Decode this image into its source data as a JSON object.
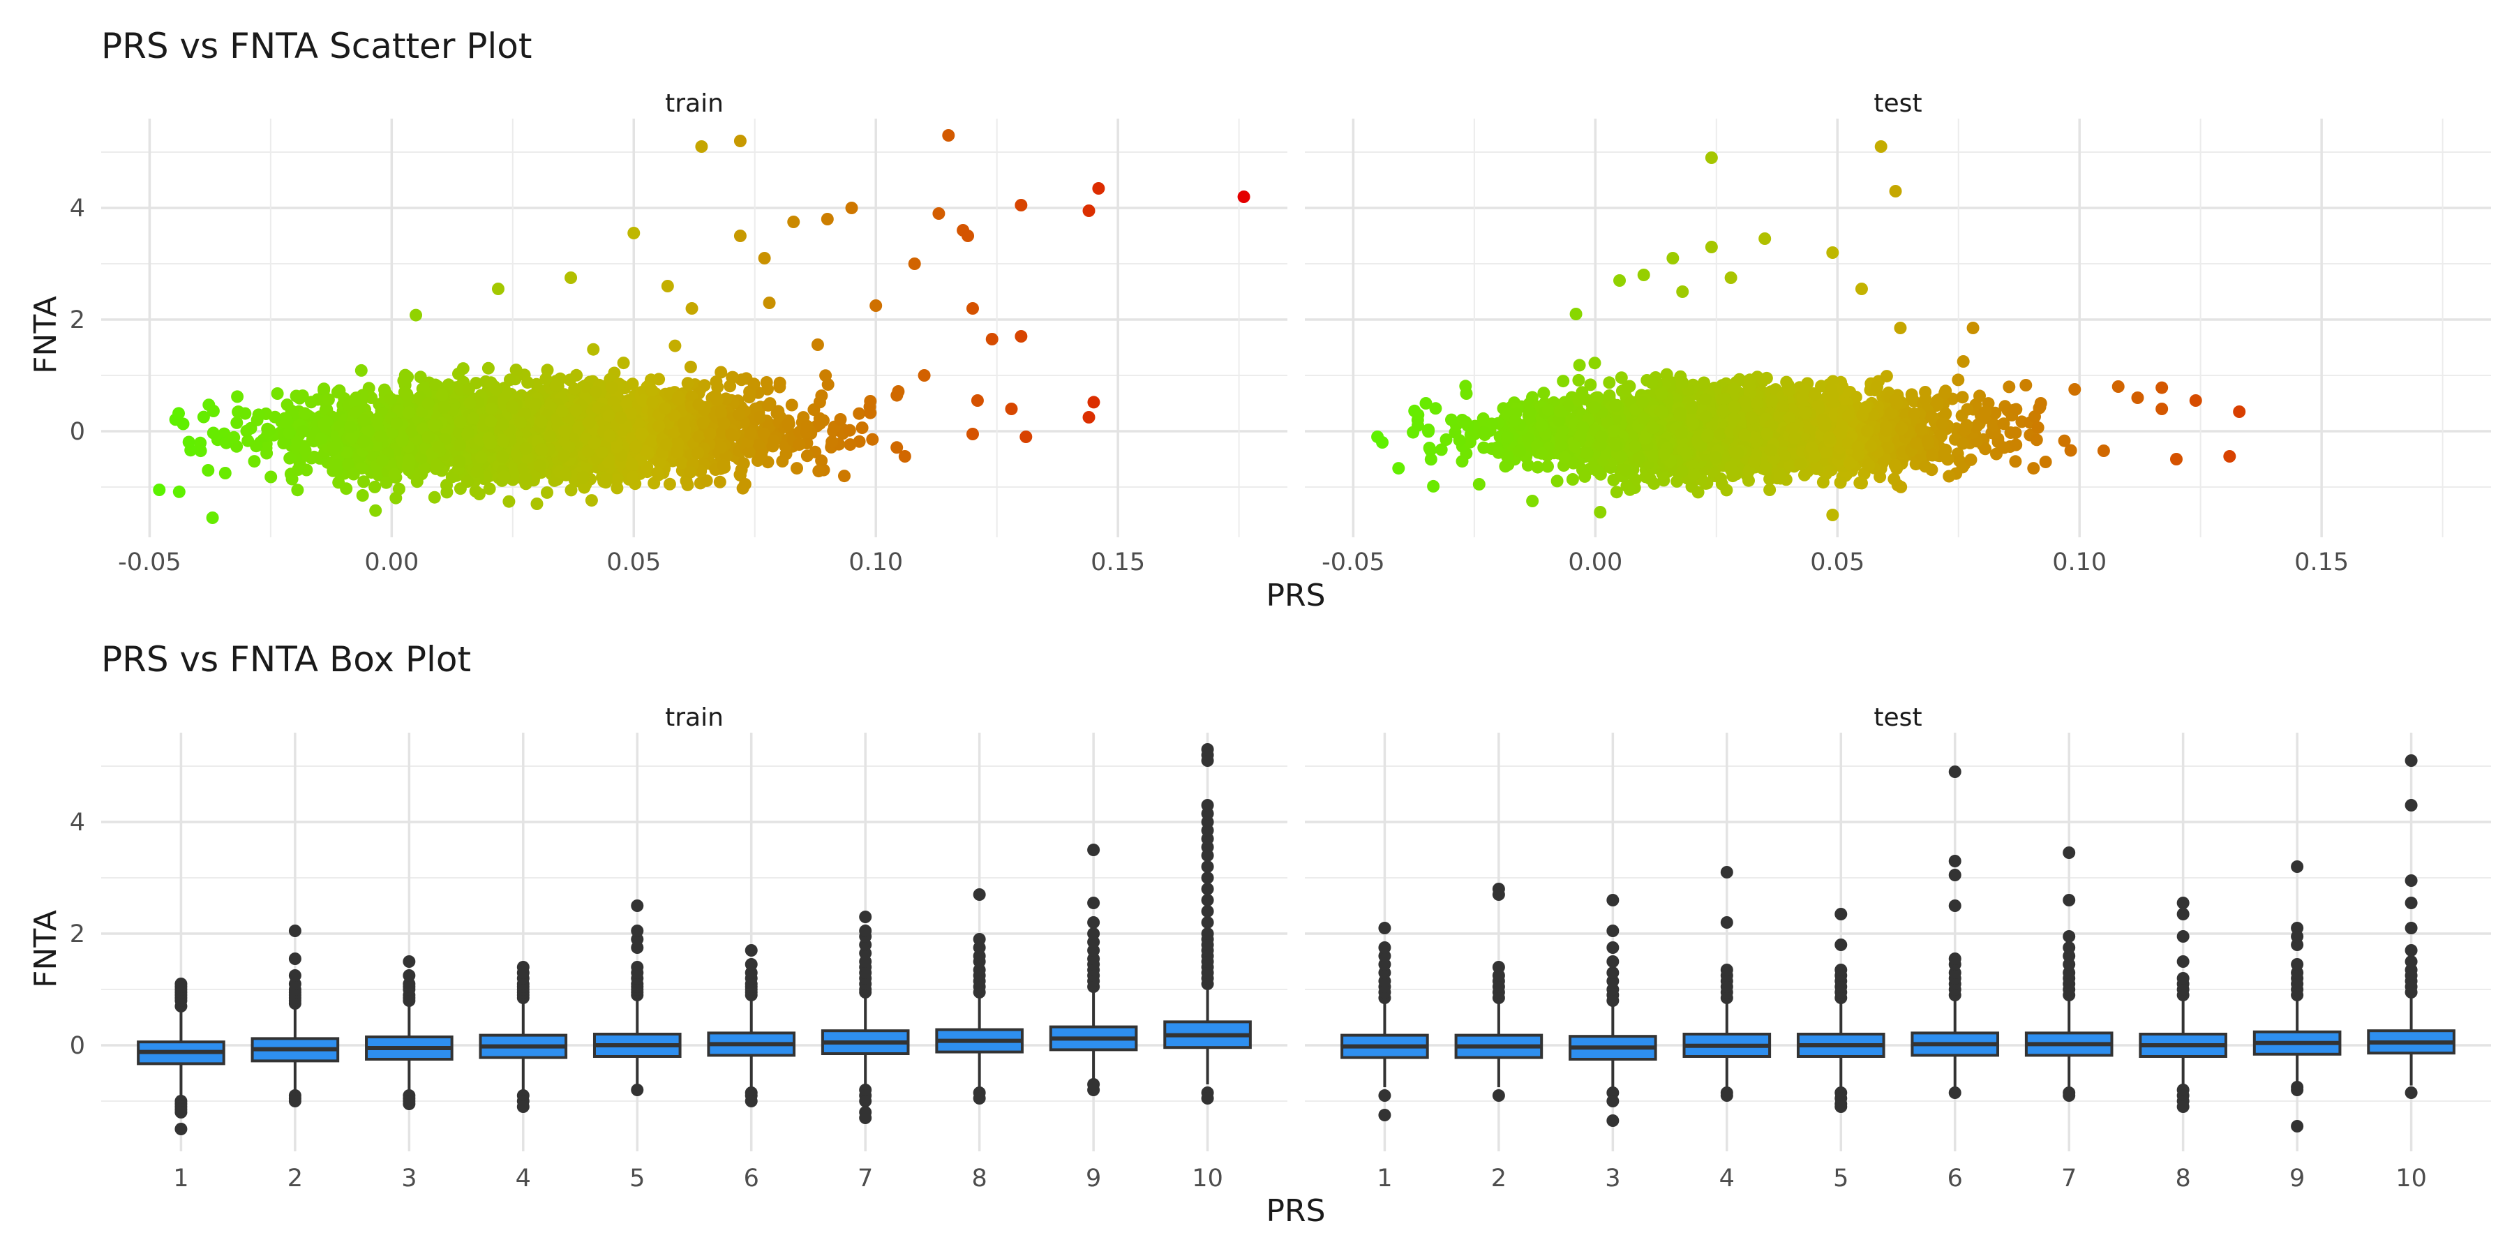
{
  "figure": {
    "top_title": "PRS vs FNTA Scatter Plot",
    "bottom_title": "PRS vs FNTA Box Plot"
  },
  "chart_data": [
    {
      "type": "scatter",
      "title": "PRS vs FNTA Scatter Plot",
      "xlabel": "PRS",
      "ylabel": "FNTA",
      "xlim": [
        -0.06,
        0.185
      ],
      "ylim": [
        -1.9,
        5.6
      ],
      "x_ticks": [
        -0.05,
        0.0,
        0.05,
        0.1,
        0.15
      ],
      "x_tick_labels": [
        "-0.05",
        "0.00",
        "0.05",
        "0.10",
        "0.15"
      ],
      "y_ticks": [
        0,
        2,
        4
      ],
      "y_tick_labels": [
        "0",
        "2",
        "4"
      ],
      "grid": true,
      "legend": "none",
      "color_mapping": "points colored by PRS on a green-to-red gradient",
      "colors": {
        "low": "#5bf200",
        "mid": "#c2b500",
        "high": "#e40000"
      },
      "facets": [
        {
          "name": "train",
          "cloud": {
            "x_center": 0.03,
            "x_sd": 0.024,
            "x_range": [
              -0.045,
              0.11
            ],
            "y_sd": 0.38,
            "slope": 4.0
          },
          "points": [
            {
              "x": -0.048,
              "y": -1.05
            },
            {
              "x": -0.037,
              "y": -1.55
            },
            {
              "x": -0.044,
              "y": 0.32
            },
            {
              "x": 0.005,
              "y": 2.08
            },
            {
              "x": 0.022,
              "y": 2.55
            },
            {
              "x": 0.037,
              "y": 2.75
            },
            {
              "x": 0.05,
              "y": 3.55
            },
            {
              "x": 0.057,
              "y": 2.6
            },
            {
              "x": 0.064,
              "y": 5.1
            },
            {
              "x": 0.072,
              "y": 5.2
            },
            {
              "x": 0.072,
              "y": 3.5
            },
            {
              "x": 0.077,
              "y": 3.1
            },
            {
              "x": 0.083,
              "y": 3.75
            },
            {
              "x": 0.09,
              "y": 3.8
            },
            {
              "x": 0.095,
              "y": 4.0
            },
            {
              "x": 0.108,
              "y": 3.0
            },
            {
              "x": 0.1,
              "y": 2.25
            },
            {
              "x": 0.115,
              "y": 5.3
            },
            {
              "x": 0.11,
              "y": 1.0
            },
            {
              "x": 0.113,
              "y": 3.9
            },
            {
              "x": 0.118,
              "y": 3.6
            },
            {
              "x": 0.119,
              "y": 3.5
            },
            {
              "x": 0.12,
              "y": 2.2
            },
            {
              "x": 0.121,
              "y": 0.55
            },
            {
              "x": 0.12,
              "y": -0.05
            },
            {
              "x": 0.124,
              "y": 1.65
            },
            {
              "x": 0.128,
              "y": 0.4
            },
            {
              "x": 0.13,
              "y": 4.05
            },
            {
              "x": 0.13,
              "y": 1.7
            },
            {
              "x": 0.131,
              "y": -0.1
            },
            {
              "x": 0.144,
              "y": 3.95
            },
            {
              "x": 0.146,
              "y": 4.35
            },
            {
              "x": 0.145,
              "y": 0.52
            },
            {
              "x": 0.144,
              "y": 0.25
            },
            {
              "x": 0.176,
              "y": 4.2
            },
            {
              "x": 0.073,
              "y": -0.95
            },
            {
              "x": -0.006,
              "y": -1.15
            },
            {
              "x": 0.03,
              "y": -1.3
            },
            {
              "x": 0.106,
              "y": -0.45
            },
            {
              "x": 0.088,
              "y": 1.55
            },
            {
              "x": 0.078,
              "y": 2.3
            },
            {
              "x": 0.062,
              "y": 2.2
            }
          ]
        },
        {
          "name": "test",
          "cloud": {
            "x_center": 0.03,
            "x_sd": 0.022,
            "x_range": [
              -0.045,
              0.1
            ],
            "y_sd": 0.35,
            "slope": 0.5
          },
          "points": [
            {
              "x": -0.045,
              "y": -0.1
            },
            {
              "x": -0.044,
              "y": -0.2
            },
            {
              "x": -0.035,
              "y": 0.5
            },
            {
              "x": -0.024,
              "y": -0.95
            },
            {
              "x": -0.013,
              "y": -1.25
            },
            {
              "x": 0.001,
              "y": -1.45
            },
            {
              "x": 0.024,
              "y": 4.9
            },
            {
              "x": 0.059,
              "y": 5.1
            },
            {
              "x": 0.062,
              "y": 4.3
            },
            {
              "x": 0.024,
              "y": 3.3
            },
            {
              "x": 0.016,
              "y": 3.1
            },
            {
              "x": 0.035,
              "y": 3.45
            },
            {
              "x": 0.049,
              "y": 3.2
            },
            {
              "x": 0.055,
              "y": 2.55
            },
            {
              "x": 0.01,
              "y": 2.8
            },
            {
              "x": 0.018,
              "y": 2.5
            },
            {
              "x": 0.028,
              "y": 2.75
            },
            {
              "x": 0.063,
              "y": 1.85
            },
            {
              "x": 0.078,
              "y": 1.85
            },
            {
              "x": 0.099,
              "y": 0.75
            },
            {
              "x": 0.108,
              "y": 0.8
            },
            {
              "x": 0.117,
              "y": 0.78
            },
            {
              "x": 0.112,
              "y": 0.6
            },
            {
              "x": 0.117,
              "y": 0.4
            },
            {
              "x": 0.124,
              "y": 0.55
            },
            {
              "x": 0.133,
              "y": 0.35
            },
            {
              "x": 0.131,
              "y": -0.45
            },
            {
              "x": 0.12,
              "y": -0.5
            },
            {
              "x": 0.105,
              "y": -0.35
            },
            {
              "x": 0.093,
              "y": -0.55
            },
            {
              "x": 0.049,
              "y": -1.5
            },
            {
              "x": 0.036,
              "y": -1.05
            },
            {
              "x": -0.004,
              "y": 2.1
            },
            {
              "x": 0.005,
              "y": 2.7
            },
            {
              "x": 0.076,
              "y": 1.25
            },
            {
              "x": 0.092,
              "y": 0.5
            }
          ]
        }
      ]
    },
    {
      "type": "box",
      "title": "PRS vs FNTA Box Plot",
      "xlabel": "PRS",
      "ylabel": "FNTA",
      "categories": [
        "1",
        "2",
        "3",
        "4",
        "5",
        "6",
        "7",
        "8",
        "9",
        "10"
      ],
      "ylim": [
        -1.9,
        5.6
      ],
      "y_ticks": [
        0,
        2,
        4
      ],
      "y_tick_labels": [
        "0",
        "2",
        "4"
      ],
      "grid": true,
      "box_fill": "#2e8ff0",
      "box_outline": "#333333",
      "facets": [
        {
          "name": "train",
          "boxes": [
            {
              "q1": -0.33,
              "median": -0.12,
              "q3": 0.06,
              "whisker_low": -0.92,
              "whisker_high": 0.62,
              "outliers": [
                0.7,
                0.8,
                0.85,
                0.9,
                0.95,
                1.0,
                1.05,
                1.1,
                -1.0,
                -1.05,
                -1.1,
                -1.15,
                -1.2,
                -1.5
              ]
            },
            {
              "q1": -0.28,
              "median": -0.07,
              "q3": 0.12,
              "whisker_low": -0.85,
              "whisker_high": 0.7,
              "outliers": [
                0.75,
                0.8,
                0.85,
                0.9,
                0.95,
                1.0,
                1.1,
                1.25,
                1.55,
                2.05,
                -0.9,
                -0.95,
                -1.0
              ]
            },
            {
              "q1": -0.25,
              "median": -0.05,
              "q3": 0.15,
              "whisker_low": -0.85,
              "whisker_high": 0.75,
              "outliers": [
                0.8,
                0.85,
                0.9,
                1.0,
                1.05,
                1.1,
                1.25,
                1.5,
                -0.9,
                -0.95,
                -1.0,
                -1.05
              ]
            },
            {
              "q1": -0.22,
              "median": -0.02,
              "q3": 0.18,
              "whisker_low": -0.85,
              "whisker_high": 0.8,
              "outliers": [
                0.85,
                0.9,
                0.95,
                1.0,
                1.05,
                1.1,
                1.2,
                1.3,
                1.4,
                -0.9,
                -1.0,
                -1.1
              ]
            },
            {
              "q1": -0.2,
              "median": 0.0,
              "q3": 0.2,
              "whisker_low": -0.75,
              "whisker_high": 0.82,
              "outliers": [
                0.9,
                0.95,
                1.0,
                1.05,
                1.1,
                1.2,
                1.3,
                1.4,
                1.75,
                1.9,
                2.05,
                2.5,
                -0.8
              ]
            },
            {
              "q1": -0.18,
              "median": 0.02,
              "q3": 0.22,
              "whisker_low": -0.8,
              "whisker_high": 0.85,
              "outliers": [
                0.9,
                0.95,
                1.0,
                1.05,
                1.1,
                1.2,
                1.3,
                1.45,
                1.7,
                -0.85,
                -0.9,
                -1.0
              ]
            },
            {
              "q1": -0.15,
              "median": 0.05,
              "q3": 0.26,
              "whisker_low": -0.75,
              "whisker_high": 0.9,
              "outliers": [
                0.95,
                1.0,
                1.1,
                1.2,
                1.3,
                1.4,
                1.5,
                1.65,
                1.8,
                1.95,
                2.05,
                2.3,
                -0.8,
                -0.9,
                -1.0,
                -1.2,
                -1.3
              ]
            },
            {
              "q1": -0.12,
              "median": 0.08,
              "q3": 0.28,
              "whisker_low": -0.75,
              "whisker_high": 0.9,
              "outliers": [
                0.95,
                1.05,
                1.15,
                1.25,
                1.35,
                1.5,
                1.6,
                1.75,
                1.9,
                2.7,
                -0.85,
                -0.95
              ]
            },
            {
              "q1": -0.08,
              "median": 0.12,
              "q3": 0.33,
              "whisker_low": -0.65,
              "whisker_high": 1.0,
              "outliers": [
                1.05,
                1.15,
                1.25,
                1.35,
                1.45,
                1.55,
                1.7,
                1.85,
                2.0,
                2.2,
                2.55,
                3.5,
                -0.7,
                -0.8
              ]
            },
            {
              "q1": -0.04,
              "median": 0.18,
              "q3": 0.42,
              "whisker_low": -0.7,
              "whisker_high": 1.05,
              "outliers": [
                1.1,
                1.2,
                1.3,
                1.4,
                1.5,
                1.6,
                1.7,
                1.8,
                1.9,
                2.0,
                2.2,
                2.4,
                2.6,
                2.8,
                3.0,
                3.2,
                3.4,
                3.55,
                3.7,
                3.85,
                4.0,
                4.15,
                4.3,
                5.1,
                5.2,
                5.3,
                -0.85,
                -0.95
              ]
            }
          ]
        },
        {
          "name": "test",
          "boxes": [
            {
              "q1": -0.22,
              "median": -0.02,
              "q3": 0.18,
              "whisker_low": -0.75,
              "whisker_high": 0.75,
              "outliers": [
                0.85,
                0.95,
                1.05,
                1.15,
                1.3,
                1.45,
                1.6,
                1.75,
                2.1,
                -0.9,
                -1.25
              ]
            },
            {
              "q1": -0.22,
              "median": -0.02,
              "q3": 0.18,
              "whisker_low": -0.75,
              "whisker_high": 0.78,
              "outliers": [
                0.85,
                0.95,
                1.05,
                1.15,
                1.25,
                1.4,
                2.7,
                2.8,
                -0.9
              ]
            },
            {
              "q1": -0.25,
              "median": -0.04,
              "q3": 0.16,
              "whisker_low": -0.8,
              "whisker_high": 0.76,
              "outliers": [
                0.8,
                0.9,
                1.0,
                1.15,
                1.3,
                1.5,
                1.75,
                2.05,
                2.6,
                -0.85,
                -1.0,
                -1.35
              ]
            },
            {
              "q1": -0.2,
              "median": -0.01,
              "q3": 0.2,
              "whisker_low": -0.78,
              "whisker_high": 0.8,
              "outliers": [
                0.85,
                0.95,
                1.05,
                1.15,
                1.25,
                1.35,
                2.2,
                3.1,
                -0.85,
                -0.9
              ]
            },
            {
              "q1": -0.2,
              "median": 0.0,
              "q3": 0.2,
              "whisker_low": -0.78,
              "whisker_high": 0.82,
              "outliers": [
                0.85,
                0.95,
                1.05,
                1.15,
                1.25,
                1.35,
                1.8,
                2.35,
                -0.85,
                -0.95,
                -1.05,
                -1.1
              ]
            },
            {
              "q1": -0.18,
              "median": 0.02,
              "q3": 0.22,
              "whisker_low": -0.75,
              "whisker_high": 0.85,
              "outliers": [
                0.9,
                1.0,
                1.1,
                1.2,
                1.3,
                1.45,
                1.55,
                2.5,
                3.05,
                3.3,
                4.9,
                -0.85
              ]
            },
            {
              "q1": -0.18,
              "median": 0.02,
              "q3": 0.22,
              "whisker_low": -0.75,
              "whisker_high": 0.82,
              "outliers": [
                0.9,
                1.0,
                1.1,
                1.2,
                1.3,
                1.45,
                1.6,
                1.75,
                1.95,
                2.6,
                3.45,
                -0.85,
                -0.9
              ]
            },
            {
              "q1": -0.2,
              "median": 0.0,
              "q3": 0.2,
              "whisker_low": -0.75,
              "whisker_high": 0.8,
              "outliers": [
                0.9,
                1.0,
                1.1,
                1.2,
                1.5,
                1.95,
                2.35,
                2.55,
                -0.8,
                -0.9,
                -1.0,
                -1.1
              ]
            },
            {
              "q1": -0.16,
              "median": 0.04,
              "q3": 0.24,
              "whisker_low": -0.72,
              "whisker_high": 0.85,
              "outliers": [
                0.9,
                1.0,
                1.1,
                1.2,
                1.3,
                1.45,
                1.8,
                1.95,
                2.1,
                3.2,
                -0.75,
                -0.8,
                -1.45
              ]
            },
            {
              "q1": -0.14,
              "median": 0.05,
              "q3": 0.26,
              "whisker_low": -0.72,
              "whisker_high": 0.88,
              "outliers": [
                0.95,
                1.05,
                1.15,
                1.25,
                1.35,
                1.5,
                1.7,
                2.1,
                2.55,
                2.95,
                4.3,
                5.1,
                -0.85
              ]
            }
          ]
        }
      ]
    }
  ]
}
